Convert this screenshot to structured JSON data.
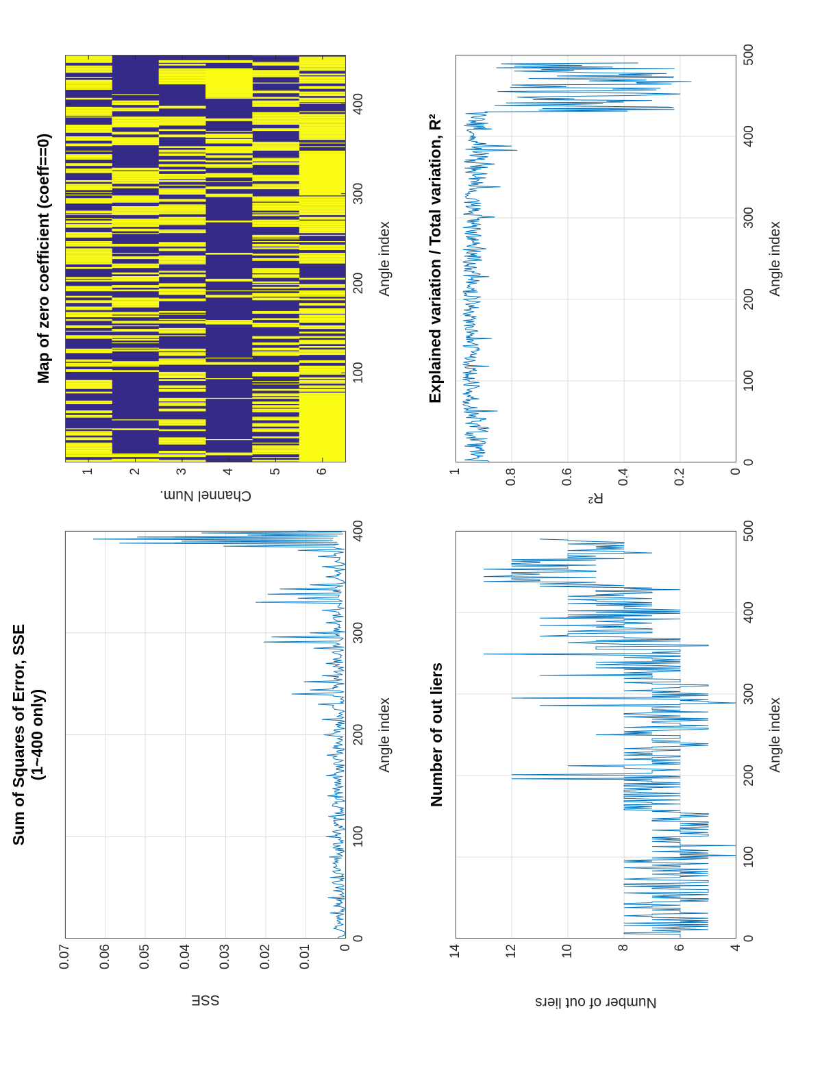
{
  "page": {
    "background": "#ffffff",
    "orientation": "landscape figure rotated 90deg CCW on portrait page"
  },
  "colors": {
    "line": "#0072BD",
    "heatmap_zero": "#352a87",
    "heatmap_one": "#f9fb15",
    "grid": "#dcdcdc",
    "axis": "#555555",
    "text": "#262626"
  },
  "chart_data": [
    {
      "id": "heatmap",
      "type": "heatmap",
      "title": "Map of zero coefficient (coeff==0)",
      "xlabel": "Angle index",
      "ylabel": "Channel Num.",
      "xlim": [
        0,
        455
      ],
      "x_ticks": [
        100,
        200,
        300,
        400
      ],
      "y_ticks": [
        1,
        2,
        3,
        4,
        5,
        6
      ],
      "grid": false,
      "cell_colors": {
        "blue": "#352a87",
        "yellow": "#f9fb15"
      },
      "seed": 99,
      "channels": [
        {
          "channel": 1,
          "segments": [
            [
              0,
              455,
              0.52
            ]
          ]
        },
        {
          "channel": 2,
          "segments": [
            [
              0,
              38,
              0.45
            ],
            [
              38,
              88,
              0.02
            ],
            [
              88,
              330,
              0.48
            ],
            [
              330,
              352,
              0.04
            ],
            [
              352,
              412,
              0.45
            ],
            [
              412,
              455,
              0
            ]
          ]
        },
        {
          "channel": 3,
          "segments": [
            [
              0,
              150,
              0.48
            ],
            [
              150,
              185,
              0.25
            ],
            [
              185,
              390,
              0.52
            ],
            [
              390,
              422,
              0.05
            ],
            [
              422,
              455,
              0.5
            ]
          ]
        },
        {
          "channel": 4,
          "segments": [
            [
              0,
              300,
              0.07
            ],
            [
              300,
              408,
              0.42
            ],
            [
              408,
              440,
              1
            ],
            [
              440,
              455,
              0.3
            ]
          ]
        },
        {
          "channel": 5,
          "segments": [
            [
              0,
              455,
              0.45
            ]
          ]
        },
        {
          "channel": 6,
          "segments": [
            [
              0,
              75,
              1
            ],
            [
              75,
              240,
              0.5
            ],
            [
              240,
              298,
              0.72
            ],
            [
              298,
              345,
              1
            ],
            [
              345,
              392,
              0.6
            ],
            [
              392,
              455,
              0.82
            ]
          ]
        }
      ]
    },
    {
      "id": "r2",
      "type": "line",
      "title": "Explained variation / Total variation, R²",
      "xlabel": "Angle index",
      "ylabel": "R²",
      "xlim": [
        0,
        500
      ],
      "ylim": [
        0,
        1
      ],
      "x_ticks": [
        0,
        100,
        200,
        300,
        400,
        500
      ],
      "y_ticks": [
        0,
        0.2,
        0.4,
        0.6,
        0.8,
        1
      ],
      "grid": true,
      "series_spec": {
        "seed": 7,
        "x_start": 1,
        "x_end": 490,
        "segments": [
          {
            "x0": 1,
            "x1": 55,
            "base": 0.925,
            "amp": 0.045
          },
          {
            "x0": 55,
            "x1": 170,
            "base": 0.945,
            "amp": 0.03
          },
          {
            "x0": 170,
            "x1": 340,
            "base": 0.94,
            "amp": 0.035
          },
          {
            "x0": 340,
            "x1": 430,
            "base": 0.925,
            "amp": 0.045
          },
          {
            "x0": 430,
            "x1": 490,
            "base": 0.55,
            "amp": 0.33
          }
        ],
        "spikes": [
          [
            63,
            0.85
          ],
          [
            118,
            0.88
          ],
          [
            152,
            0.87
          ],
          [
            228,
            0.88
          ],
          [
            262,
            0.89
          ],
          [
            301,
            0.86
          ],
          [
            338,
            0.84
          ],
          [
            366,
            0.86
          ],
          [
            383,
            0.78
          ],
          [
            388,
            0.8
          ],
          [
            409,
            0.87
          ],
          [
            436,
            0.24
          ],
          [
            441,
            0.82
          ],
          [
            444,
            0.3
          ],
          [
            448,
            0.78
          ],
          [
            452,
            0.2
          ],
          [
            455,
            0.85
          ],
          [
            459,
            0.27
          ],
          [
            463,
            0.8
          ],
          [
            467,
            0.16
          ],
          [
            471,
            0.74
          ],
          [
            475,
            0.3
          ],
          [
            479,
            0.62
          ],
          [
            483,
            0.22
          ],
          [
            487,
            0.55
          ],
          [
            490,
            0.35
          ]
        ]
      }
    },
    {
      "id": "sse",
      "type": "line",
      "title": "Sum of Squares of Error, SSE",
      "subtitle": "(1~400 only)",
      "xlabel": "Angle index",
      "ylabel": "SSE",
      "xlim": [
        0,
        400
      ],
      "ylim": [
        0,
        0.07
      ],
      "x_ticks": [
        0,
        100,
        200,
        300,
        400
      ],
      "y_ticks": [
        0,
        0.01,
        0.02,
        0.03,
        0.04,
        0.05,
        0.06,
        0.07
      ],
      "grid": true,
      "series_spec": {
        "seed": 13,
        "x_start": 1,
        "x_end": 400,
        "segments": [
          {
            "x0": 1,
            "x1": 400,
            "base": 0.0018,
            "amp": 0.0016
          }
        ],
        "spikes": [
          [
            25,
            0.004
          ],
          [
            40,
            0.0045
          ],
          [
            60,
            0.004
          ],
          [
            80,
            0.0042
          ],
          [
            100,
            0.005
          ],
          [
            120,
            0.0044
          ],
          [
            140,
            0.0046
          ],
          [
            160,
            0.005
          ],
          [
            180,
            0.0048
          ],
          [
            200,
            0.0055
          ],
          [
            215,
            0.006
          ],
          [
            230,
            0.007
          ],
          [
            240,
            0.0135
          ],
          [
            244,
            0.009
          ],
          [
            252,
            0.0105
          ],
          [
            258,
            0.006
          ],
          [
            270,
            0.005
          ],
          [
            285,
            0.008
          ],
          [
            291,
            0.0205
          ],
          [
            296,
            0.0185
          ],
          [
            300,
            0.009
          ],
          [
            310,
            0.005
          ],
          [
            322,
            0.006
          ],
          [
            330,
            0.0225
          ],
          [
            334,
            0.012
          ],
          [
            338,
            0.0195
          ],
          [
            343,
            0.0165
          ],
          [
            347,
            0.009
          ],
          [
            355,
            0.005
          ],
          [
            365,
            0.006
          ],
          [
            375,
            0.007
          ],
          [
            381,
            0.012
          ],
          [
            385,
            0.0305
          ],
          [
            388,
            0.0565
          ],
          [
            390,
            0.041
          ],
          [
            392,
            0.063
          ],
          [
            394,
            0.052
          ],
          [
            396,
            0.0245
          ],
          [
            398,
            0.036
          ],
          [
            400,
            0.012
          ]
        ]
      }
    },
    {
      "id": "outliers",
      "type": "line",
      "title": "Number of out liers",
      "xlabel": "Angle index",
      "ylabel": "Number of out liers",
      "xlim": [
        0,
        500
      ],
      "ylim": [
        4,
        14
      ],
      "x_ticks": [
        0,
        100,
        200,
        300,
        400,
        500
      ],
      "y_ticks": [
        4,
        6,
        8,
        10,
        12,
        14
      ],
      "grid": true,
      "series_spec": {
        "seed": 21,
        "x_start": 1,
        "x_end": 490,
        "round": true,
        "segments": [
          {
            "x0": 1,
            "x1": 100,
            "base": 6.4,
            "amp": 1.8
          },
          {
            "x0": 100,
            "x1": 155,
            "base": 5.8,
            "amp": 1.4
          },
          {
            "x0": 155,
            "x1": 255,
            "base": 7.0,
            "amp": 1.6
          },
          {
            "x0": 255,
            "x1": 300,
            "base": 6.2,
            "amp": 1.8
          },
          {
            "x0": 300,
            "x1": 330,
            "base": 6.8,
            "amp": 1.6
          },
          {
            "x0": 330,
            "x1": 360,
            "base": 7.5,
            "amp": 2.2
          },
          {
            "x0": 360,
            "x1": 430,
            "base": 8.0,
            "amp": 2.2
          },
          {
            "x0": 430,
            "x1": 465,
            "base": 10.5,
            "amp": 2.2
          },
          {
            "x0": 465,
            "x1": 490,
            "base": 9.0,
            "amp": 1.8
          }
        ],
        "spikes": [
          [
            196,
            12
          ],
          [
            201,
            12
          ],
          [
            212,
            10
          ],
          [
            286,
            11
          ],
          [
            295,
            12
          ],
          [
            323,
            11
          ],
          [
            349,
            13
          ],
          [
            371,
            11
          ],
          [
            384,
            11
          ],
          [
            393,
            11
          ],
          [
            438,
            13
          ],
          [
            444,
            13
          ],
          [
            449,
            12
          ],
          [
            453,
            13
          ],
          [
            460,
            12
          ]
        ]
      }
    }
  ]
}
